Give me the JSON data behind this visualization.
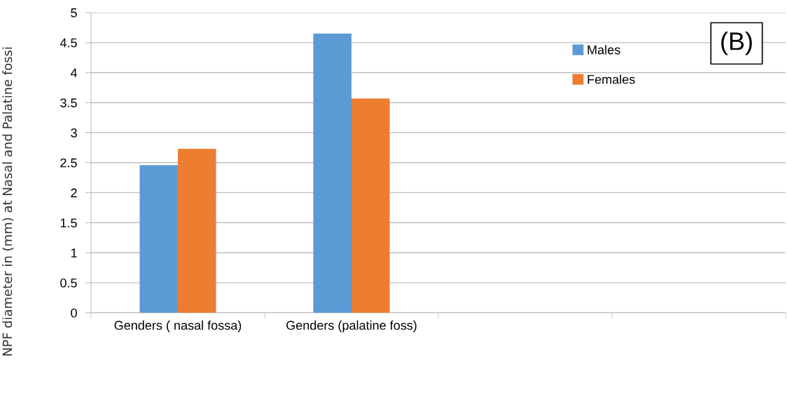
{
  "chart_data": {
    "type": "bar",
    "ylabel": "NPF diameter in (mm) at Nasal and Palatine fossi",
    "categories": [
      "Genders ( nasal fossa)",
      "Genders (palatine foss)",
      null,
      null
    ],
    "series": [
      {
        "name": "Males",
        "color": "#5b9bd5",
        "values": [
          2.46,
          4.65,
          null,
          null
        ]
      },
      {
        "name": "Females",
        "color": "#ed7d31",
        "values": [
          2.73,
          3.57,
          null,
          null
        ]
      }
    ],
    "ylim": [
      0,
      5
    ],
    "yticks": [
      0,
      0.5,
      1,
      1.5,
      2,
      2.5,
      3,
      3.5,
      4,
      4.5,
      5
    ],
    "grid": "y",
    "legend": "top right",
    "annotations": [
      "(B)"
    ]
  }
}
